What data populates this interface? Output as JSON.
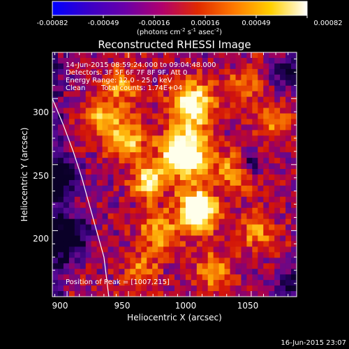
{
  "colorbar": {
    "ticks": [
      "-0.00082",
      "-0.00049",
      "-0.00016",
      "0.00016",
      "0.00049",
      "0.00082"
    ],
    "units_main": "(photons cm",
    "units_sup1": "-2",
    "units_mid": " s",
    "units_sup2": "-1",
    "units_end": " asec",
    "units_sup3": "-2",
    "units_close": ")",
    "stops": [
      "#0000ff",
      "#3a00c8",
      "#6a00a8",
      "#b0006e",
      "#e02a00",
      "#ff7a00",
      "#ffd000",
      "#ffffff"
    ]
  },
  "title": "Reconstructed RHESSI Image",
  "info": {
    "line1": "14-Jun-2015 08:59:24.000 to 09:04:48.000",
    "line2": "Detectors: 3F 5F 6F 7F 8F 9F, Att 0",
    "line3": "Energy Range: 12.0 - 25.0 keV",
    "line4a": "Clean",
    "line4b": "Total counts: 1.74E+04"
  },
  "peak_label": "Position of Peak = [1007,215]",
  "footer_date": "16-Jun-2015 23:07",
  "chart_data": {
    "type": "heatmap",
    "title": "Reconstructed RHESSI Image",
    "xlabel": "Heliocentric X (arcsec)",
    "ylabel": "Heliocentric Y (arcsec)",
    "xlim": [
      888,
      1087
    ],
    "ylim": [
      150,
      335
    ],
    "xticks": [
      900,
      950,
      1000,
      1050
    ],
    "xtick_labels": [
      "900",
      "950",
      "1000",
      "1050"
    ],
    "yticks": [
      200,
      250,
      300
    ],
    "ytick_labels": [
      "200",
      "250",
      "300"
    ],
    "colorbar_range": [
      -0.00082,
      0.00082
    ],
    "peak": {
      "x": 1007,
      "y": 215
    },
    "limb_curve": {
      "x": [
        888,
        897,
        905,
        912,
        918,
        924,
        930,
        934
      ],
      "y": [
        300,
        280,
        260,
        240,
        220,
        200,
        180,
        150
      ]
    },
    "blobs": [
      {
        "x": 1007,
        "y": 215,
        "sigma": 10,
        "amp": 1.0
      },
      {
        "x": 996,
        "y": 258,
        "sigma": 14,
        "amp": 0.85
      },
      {
        "x": 1002,
        "y": 296,
        "sigma": 12,
        "amp": 0.7
      },
      {
        "x": 966,
        "y": 238,
        "sigma": 9,
        "amp": 0.6
      },
      {
        "x": 928,
        "y": 285,
        "sigma": 10,
        "amp": 0.45
      },
      {
        "x": 948,
        "y": 270,
        "sigma": 11,
        "amp": 0.5
      },
      {
        "x": 1038,
        "y": 244,
        "sigma": 10,
        "amp": 0.45
      },
      {
        "x": 1055,
        "y": 200,
        "sigma": 10,
        "amp": 0.4
      },
      {
        "x": 1020,
        "y": 170,
        "sigma": 11,
        "amp": 0.35
      },
      {
        "x": 1068,
        "y": 282,
        "sigma": 9,
        "amp": 0.35
      },
      {
        "x": 975,
        "y": 200,
        "sigma": 12,
        "amp": 0.4
      },
      {
        "x": 945,
        "y": 310,
        "sigma": 10,
        "amp": 0.35
      },
      {
        "x": 1045,
        "y": 310,
        "sigma": 10,
        "amp": 0.3
      },
      {
        "x": 960,
        "y": 170,
        "sigma": 10,
        "amp": 0.3
      }
    ],
    "holes": [
      {
        "x": 1048,
        "y": 250,
        "sigma": 6,
        "amp": -0.45
      },
      {
        "x": 1078,
        "y": 320,
        "sigma": 9,
        "amp": -0.35
      },
      {
        "x": 893,
        "y": 240,
        "sigma": 10,
        "amp": -0.55
      },
      {
        "x": 900,
        "y": 195,
        "sigma": 12,
        "amp": -0.55
      },
      {
        "x": 1080,
        "y": 160,
        "sigma": 10,
        "amp": -0.3
      }
    ]
  }
}
